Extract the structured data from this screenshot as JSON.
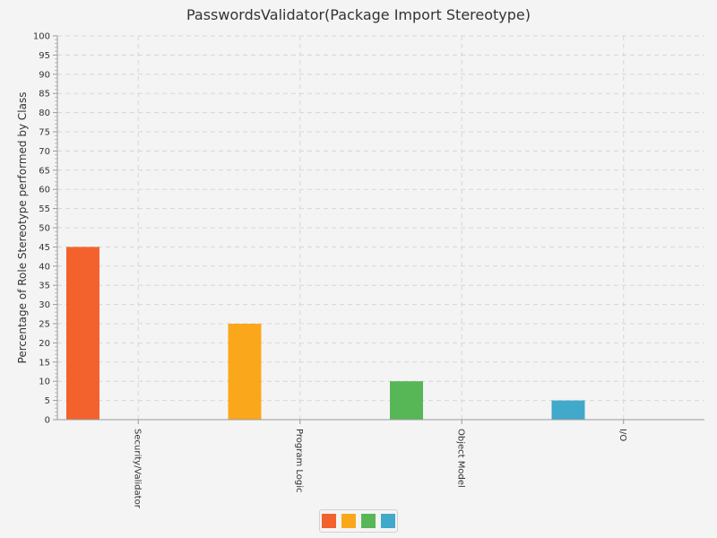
{
  "chart_data": {
    "type": "bar",
    "title": "PasswordsValidator(Package Import Stereotype)",
    "xlabel": "",
    "ylabel": "Percentage of Role Stereotype performed by Class",
    "categories": [
      "Security/Validator",
      "Program Logic",
      "Object Model",
      "I/O"
    ],
    "values": [
      45,
      25,
      10,
      5
    ],
    "colors": [
      "#f3622d",
      "#fba71b",
      "#57b757",
      "#41a9c9"
    ],
    "ylim": [
      0,
      100
    ],
    "ytick_step": 5,
    "yticks": [
      "0",
      "5",
      "10",
      "15",
      "20",
      "25",
      "30",
      "35",
      "40",
      "45",
      "50",
      "55",
      "60",
      "65",
      "70",
      "75",
      "80",
      "85",
      "90",
      "95",
      "100"
    ],
    "grid": true,
    "legend": {
      "placement": "bottom-center",
      "swatches": [
        "#f3622d",
        "#fba71b",
        "#57b757",
        "#41a9c9"
      ]
    }
  }
}
